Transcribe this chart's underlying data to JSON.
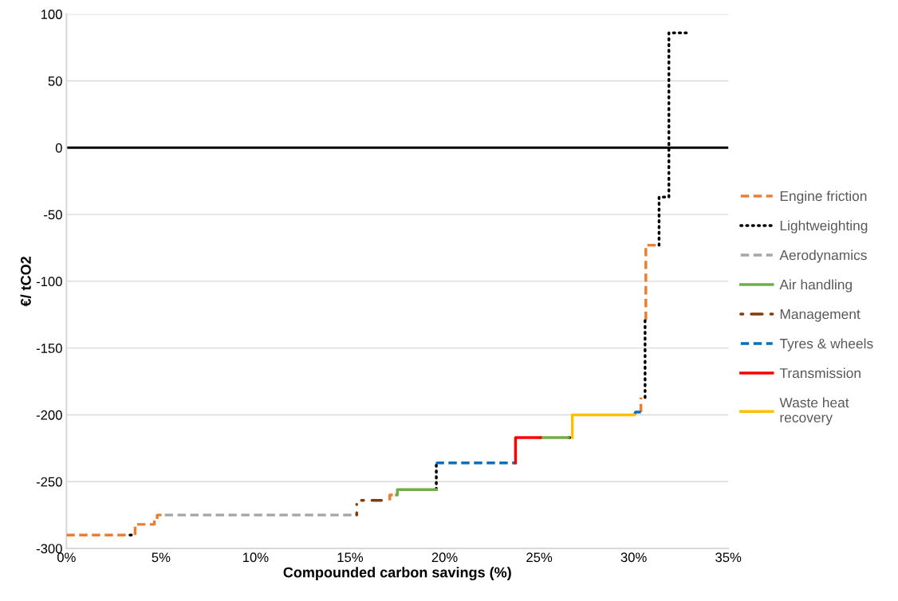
{
  "chart_data": {
    "type": "line",
    "xlabel": "Compounded carbon savings (%)",
    "ylabel": "€/ tCO2",
    "xlim": [
      0,
      35
    ],
    "ylim": [
      -300,
      100
    ],
    "xticks": [
      {
        "value": 0,
        "label": "0%"
      },
      {
        "value": 5,
        "label": "5%"
      },
      {
        "value": 10,
        "label": "10%"
      },
      {
        "value": 15,
        "label": "15%"
      },
      {
        "value": 20,
        "label": "20%"
      },
      {
        "value": 25,
        "label": "25%"
      },
      {
        "value": 30,
        "label": "30%"
      },
      {
        "value": 35,
        "label": "35%"
      }
    ],
    "yticks": [
      -300,
      -250,
      -200,
      -150,
      -100,
      -50,
      0,
      50,
      100
    ],
    "grid": "y",
    "legend": "right",
    "marker": "none",
    "ref_lines": [
      {
        "axis": "y",
        "value": 0,
        "color": "#000000",
        "line_style": "solid"
      }
    ],
    "series": [
      {
        "name": "Engine friction",
        "color": "#ed7d31",
        "line_style": "dashed",
        "x": [
          0,
          3.36,
          null,
          3.63,
          3.63,
          4.65,
          4.65,
          4.8,
          4.8,
          5.2,
          null,
          17.1,
          17.1,
          17.45,
          null,
          30.38,
          30.38,
          null,
          30.64,
          30.64,
          31.34
        ],
        "values": [
          -290,
          -290,
          null,
          -290,
          -282,
          -282,
          -279,
          -279,
          -275,
          -275,
          null,
          -264,
          -260,
          -260,
          null,
          -198,
          -187,
          null,
          -129,
          -73,
          -73
        ]
      },
      {
        "name": "Lightweighting",
        "color": "#000000",
        "line_style": "dotted",
        "x": [
          3.36,
          3.6,
          null,
          19.56,
          19.56,
          null,
          26.55,
          26.75,
          null,
          30.6,
          30.6,
          null,
          31.34,
          31.34,
          31.86,
          31.86,
          33.0
        ],
        "values": [
          -290,
          -290,
          null,
          -256,
          -237,
          null,
          -217,
          -217,
          null,
          -187,
          -129,
          null,
          -73,
          -37,
          -37,
          86,
          86
        ]
      },
      {
        "name": "Aerodynamics",
        "color": "#a5a5a5",
        "line_style": "dashed",
        "x": [
          5.2,
          15.34
        ],
        "values": [
          -275,
          -275
        ]
      },
      {
        "name": "Air handling",
        "color": "#70ad47",
        "line_style": "solid",
        "x": [
          17.45,
          17.5,
          17.5,
          19.56,
          null,
          25.06,
          26.55
        ],
        "values": [
          -260,
          -260,
          -256,
          -256,
          null,
          -217,
          -217
        ]
      },
      {
        "name": "Management",
        "color": "#843c0c",
        "line_style": "dashdot",
        "x": [
          15.35,
          15.35,
          null,
          15.6,
          16.66
        ],
        "values": [
          -275,
          -267,
          null,
          -264,
          -264
        ]
      },
      {
        "name": "Tyres & wheels",
        "color": "#0070c0",
        "line_style": "dashed",
        "x": [
          19.6,
          19.6,
          23.75,
          null,
          30.03,
          30.1,
          30.38
        ],
        "values": [
          -237,
          -236,
          -236,
          null,
          -200,
          -198,
          -198
        ]
      },
      {
        "name": "Transmission",
        "color": "#ff0000",
        "line_style": "solid",
        "x": [
          23.75,
          23.75,
          25.06
        ],
        "values": [
          -236,
          -217,
          -217
        ]
      },
      {
        "name": "Waste heat\nrecovery",
        "color": "#ffc000",
        "line_style": "solid",
        "x": [
          26.75,
          26.75,
          30.03
        ],
        "values": [
          -217,
          -200,
          -200
        ]
      }
    ]
  }
}
